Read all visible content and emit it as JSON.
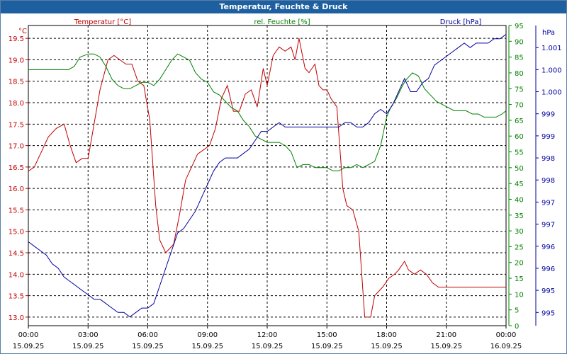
{
  "window": {
    "title": "Temperatur, Feuchte & Druck"
  },
  "chart_data": {
    "type": "line",
    "title": "Temperatur, Feuchte & Druck",
    "x_labels": [
      {
        "time": "00:00",
        "date": "15.09.25"
      },
      {
        "time": "03:00",
        "date": "15.09.25"
      },
      {
        "time": "06:00",
        "date": "15.09.25"
      },
      {
        "time": "09:00",
        "date": "15.09.25"
      },
      {
        "time": "12:00",
        "date": "15.09.25"
      },
      {
        "time": "15:00",
        "date": "15.09.25"
      },
      {
        "time": "18:00",
        "date": "15.09.25"
      },
      {
        "time": "21:00",
        "date": "15.09.25"
      },
      {
        "time": "00:00",
        "date": "16.09.25"
      }
    ],
    "x_range_hours": [
      0,
      24
    ],
    "axes": {
      "temperature": {
        "unit": "°C",
        "title": "Temperatur [°C]",
        "color": "#c00000",
        "range": [
          12.8,
          19.8
        ],
        "ticks": [
          "19.5",
          "19.0",
          "18.5",
          "18.0",
          "17.5",
          "17.0",
          "16.5",
          "16.0",
          "15.5",
          "15.0",
          "14.5",
          "14.0",
          "13.5",
          "13.0"
        ],
        "tick_values": [
          19.5,
          19.0,
          18.5,
          18.0,
          17.5,
          17.0,
          16.5,
          16.0,
          15.5,
          15.0,
          14.5,
          14.0,
          13.5,
          13.0
        ]
      },
      "humidity": {
        "unit": "%",
        "title": "rel. Feuchte [%]",
        "color": "#008000",
        "range": [
          0,
          95
        ],
        "ticks": [
          "95",
          "90",
          "85",
          "80",
          "75",
          "70",
          "65",
          "60",
          "55",
          "50",
          "45",
          "40",
          "35",
          "30",
          "25",
          "20",
          "15",
          "10",
          "5",
          "0"
        ],
        "tick_values": [
          95,
          90,
          85,
          80,
          75,
          70,
          65,
          60,
          55,
          50,
          45,
          40,
          35,
          30,
          25,
          20,
          15,
          10,
          5,
          0
        ]
      },
      "pressure": {
        "unit": "hPa",
        "title": "Druck [hPa]",
        "color": "#0000a0",
        "range": [
          994.7,
          1001.5
        ],
        "ticks": [
          "1.001",
          "1.000",
          "1.000",
          "999",
          "999",
          "998",
          "998",
          "997",
          "997",
          "996",
          "996",
          "995",
          "995"
        ],
        "tick_values": [
          1001.0,
          1000.5,
          1000.0,
          999.5,
          999.0,
          998.5,
          998.0,
          997.5,
          997.0,
          996.5,
          996.0,
          995.5,
          995.0
        ]
      }
    },
    "series": [
      {
        "name": "Temperatur",
        "axis": "temperature",
        "color": "#c00000",
        "x": [
          0,
          0.3,
          0.7,
          1.0,
          1.4,
          1.8,
          2.1,
          2.4,
          2.7,
          3.0,
          3.3,
          3.6,
          4.0,
          4.3,
          4.6,
          4.9,
          5.2,
          5.5,
          5.8,
          6.1,
          6.4,
          6.6,
          6.9,
          7.1,
          7.3,
          7.6,
          7.9,
          8.2,
          8.5,
          8.8,
          9.1,
          9.4,
          9.7,
          10.0,
          10.3,
          10.6,
          10.9,
          11.2,
          11.5,
          11.8,
          12.0,
          12.3,
          12.6,
          12.9,
          13.2,
          13.4,
          13.6,
          13.9,
          14.1,
          14.4,
          14.6,
          14.8,
          15.0,
          15.2,
          15.5,
          15.8,
          16.0,
          16.3,
          16.6,
          16.9,
          17.2,
          17.4,
          17.6,
          17.8,
          18.1,
          18.4,
          18.6,
          18.9,
          19.1,
          19.4,
          19.7,
          20.0,
          20.3,
          20.6,
          20.9,
          21.2,
          21.5,
          21.8,
          22.1,
          22.4,
          22.7,
          23.0,
          23.3,
          23.6,
          24.0
        ],
        "values": [
          16.4,
          16.5,
          16.9,
          17.2,
          17.4,
          17.5,
          17.0,
          16.6,
          16.7,
          16.7,
          17.5,
          18.3,
          19.0,
          19.1,
          19.0,
          18.9,
          18.9,
          18.5,
          18.4,
          17.6,
          15.6,
          14.8,
          14.5,
          14.6,
          14.7,
          15.4,
          16.2,
          16.5,
          16.8,
          16.9,
          17.0,
          17.4,
          18.1,
          18.4,
          17.8,
          17.8,
          18.2,
          18.3,
          17.9,
          18.8,
          18.4,
          19.1,
          19.3,
          19.2,
          19.3,
          19.0,
          19.5,
          18.8,
          18.7,
          18.9,
          18.4,
          18.3,
          18.3,
          18.1,
          17.9,
          16.0,
          15.6,
          15.5,
          15.0,
          13.0,
          13.0,
          13.5,
          13.6,
          13.7,
          13.9,
          14.0,
          14.1,
          14.3,
          14.1,
          14.0,
          14.1,
          14.0,
          13.8,
          13.7,
          13.7,
          13.7,
          13.7,
          13.7,
          13.7,
          13.7,
          13.7,
          13.7,
          13.7,
          13.7,
          13.7
        ]
      },
      {
        "name": "rel. Feuchte",
        "axis": "humidity",
        "color": "#008000",
        "x": [
          0,
          0.5,
          1.0,
          1.5,
          2.0,
          2.3,
          2.6,
          3.0,
          3.3,
          3.6,
          3.9,
          4.2,
          4.5,
          4.8,
          5.1,
          5.4,
          5.7,
          6.0,
          6.3,
          6.6,
          6.9,
          7.2,
          7.5,
          7.8,
          8.1,
          8.4,
          8.7,
          9.0,
          9.3,
          9.6,
          9.9,
          10.2,
          10.5,
          10.8,
          11.1,
          11.4,
          11.7,
          12.0,
          12.3,
          12.6,
          12.9,
          13.2,
          13.5,
          13.8,
          14.1,
          14.4,
          14.7,
          15.0,
          15.3,
          15.6,
          15.9,
          16.2,
          16.5,
          16.8,
          17.1,
          17.4,
          17.7,
          18.0,
          18.2,
          18.5,
          18.8,
          19.0,
          19.3,
          19.6,
          19.9,
          20.2,
          20.5,
          20.8,
          21.1,
          21.4,
          21.7,
          22.0,
          22.3,
          22.6,
          22.9,
          23.2,
          23.5,
          23.8,
          24.0
        ],
        "values": [
          81,
          81,
          81,
          81,
          81,
          82,
          85,
          86,
          86,
          85,
          82,
          78,
          76,
          75,
          75,
          76,
          77,
          77,
          76,
          78,
          81,
          84,
          86,
          85,
          84,
          80,
          78,
          77,
          74,
          73,
          71,
          69,
          68,
          65,
          63,
          60,
          59,
          58,
          58,
          58,
          57,
          55,
          50,
          51,
          51,
          50,
          50,
          50,
          49,
          49,
          50,
          50,
          51,
          50,
          51,
          52,
          57,
          66,
          69,
          72,
          76,
          78,
          80,
          79,
          75,
          73,
          71,
          70,
          69,
          68,
          68,
          68,
          67,
          67,
          66,
          66,
          66,
          67,
          68
        ]
      },
      {
        "name": "Druck",
        "axis": "pressure",
        "color": "#0000a0",
        "x": [
          0,
          0.3,
          0.6,
          0.9,
          1.2,
          1.5,
          1.8,
          2.1,
          2.4,
          2.7,
          3.0,
          3.3,
          3.6,
          3.9,
          4.2,
          4.5,
          4.8,
          5.1,
          5.4,
          5.7,
          6.0,
          6.3,
          6.6,
          6.9,
          7.2,
          7.5,
          7.8,
          8.1,
          8.4,
          8.7,
          9.0,
          9.3,
          9.6,
          9.9,
          10.2,
          10.5,
          10.8,
          11.1,
          11.4,
          11.7,
          12.0,
          12.3,
          12.6,
          12.9,
          13.2,
          13.5,
          13.8,
          14.1,
          14.4,
          14.7,
          15.0,
          15.3,
          15.6,
          15.9,
          16.2,
          16.5,
          16.8,
          17.1,
          17.4,
          17.7,
          18.0,
          18.3,
          18.6,
          18.9,
          19.2,
          19.5,
          19.8,
          20.1,
          20.4,
          20.7,
          21.0,
          21.3,
          21.6,
          21.9,
          22.2,
          22.5,
          22.8,
          23.1,
          23.4,
          23.7,
          24.0
        ],
        "values": [
          996.6,
          996.5,
          996.4,
          996.3,
          996.1,
          996.0,
          995.8,
          995.7,
          995.6,
          995.5,
          995.4,
          995.3,
          995.3,
          995.2,
          995.1,
          995.0,
          995.0,
          994.9,
          995.0,
          995.1,
          995.1,
          995.2,
          995.6,
          996.0,
          996.4,
          996.8,
          996.9,
          997.1,
          997.3,
          997.6,
          997.9,
          998.2,
          998.4,
          998.5,
          998.5,
          998.5,
          998.6,
          998.7,
          998.9,
          999.1,
          999.1,
          999.2,
          999.3,
          999.2,
          999.2,
          999.2,
          999.2,
          999.2,
          999.2,
          999.2,
          999.2,
          999.2,
          999.2,
          999.3,
          999.3,
          999.2,
          999.2,
          999.3,
          999.5,
          999.6,
          999.5,
          999.7,
          1000.0,
          1000.3,
          1000.0,
          1000.0,
          1000.2,
          1000.3,
          1000.6,
          1000.7,
          1000.8,
          1000.9,
          1001.0,
          1001.1,
          1001.0,
          1001.1,
          1001.1,
          1001.1,
          1001.2,
          1001.2,
          1001.3
        ]
      }
    ]
  }
}
